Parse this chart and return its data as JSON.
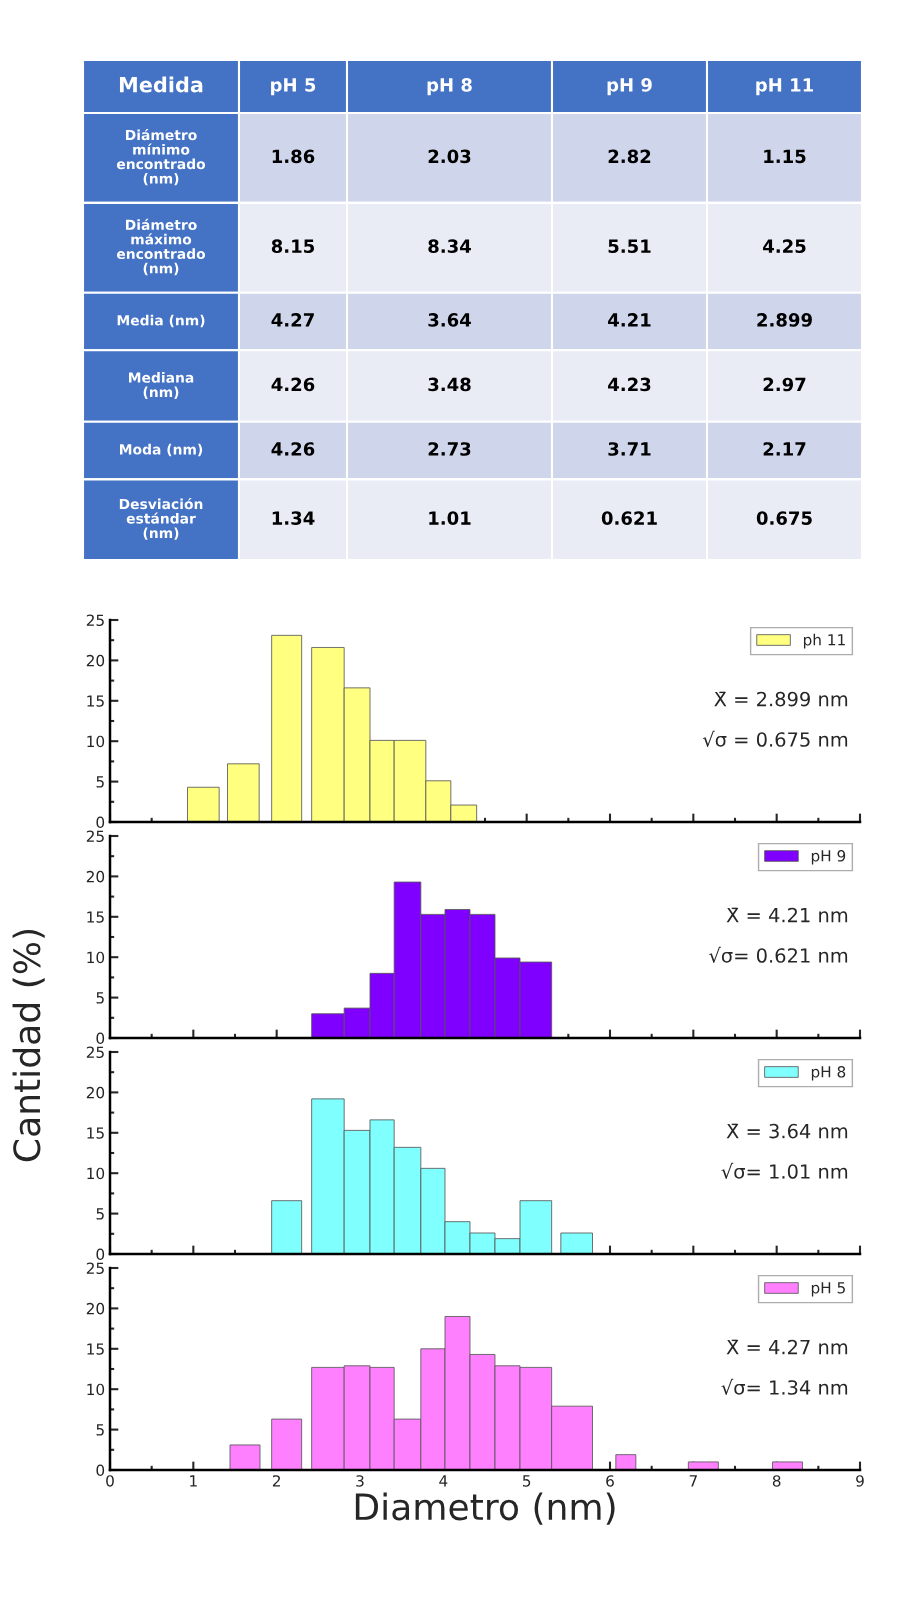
{
  "chart_data": [
    {
      "type": "histogram",
      "ylabel": "Cantidad (%)",
      "legend": "top right",
      "tick_labels": "y",
      "bins": [
        0.93,
        1.31,
        1.41,
        1.79,
        1.94,
        2.3,
        2.42,
        2.81,
        3.12,
        3.41,
        3.79,
        4.09,
        4.4
      ],
      "series": [
        {
          "name": "ph 11",
          "color": "#ffff80",
          "values": [
            4.3,
            0,
            7.2,
            0,
            23.1,
            0,
            21.6,
            16.6,
            10.1,
            10.1,
            5.1,
            2.1
          ]
        }
      ],
      "annotations": [
        "X̄ = 2.899 nm",
        "√σ = 0.675 nm"
      ],
      "ylim": [
        0,
        25
      ],
      "yticks": [
        0,
        {
          "value": 2.5,
          "label": null
        },
        5,
        {
          "value": 7.5,
          "label": null
        },
        10,
        {
          "value": 12.5,
          "label": null
        },
        15,
        {
          "value": 17.5,
          "label": null
        },
        20,
        {
          "value": 22.5,
          "label": null
        },
        25
      ],
      "xlim": [
        0,
        9
      ],
      "xticks": [
        0,
        {
          "value": 0.5,
          "label": null
        },
        1,
        {
          "value": 1.5,
          "label": null
        },
        2,
        {
          "value": 2.5,
          "label": null
        },
        3,
        {
          "value": 3.5,
          "label": null
        },
        4,
        {
          "value": 4.5,
          "label": null
        },
        5,
        {
          "value": 5.5,
          "label": null
        },
        6,
        {
          "value": 6.5,
          "label": null
        },
        7,
        {
          "value": 7.5,
          "label": null
        },
        8,
        {
          "value": 8.5,
          "label": null
        },
        9
      ]
    },
    {
      "type": "histogram",
      "legend": "top right",
      "tick_labels": "y",
      "bins": [
        2.42,
        2.81,
        3.12,
        3.41,
        3.73,
        4.02,
        4.32,
        4.62,
        4.92,
        5.3
      ],
      "series": [
        {
          "name": "pH 9",
          "color": "#8000ff",
          "values": [
            3.0,
            3.7,
            8.0,
            19.3,
            15.3,
            15.9,
            15.3,
            9.9,
            9.4
          ]
        }
      ],
      "annotations": [
        "X̄ = 4.21 nm",
        "√σ= 0.621 nm"
      ],
      "ylim": [
        0,
        25
      ],
      "yticks": [
        0,
        {
          "value": 2.5,
          "label": null
        },
        5,
        {
          "value": 7.5,
          "label": null
        },
        10,
        {
          "value": 12.5,
          "label": null
        },
        15,
        {
          "value": 17.5,
          "label": null
        },
        20,
        {
          "value": 22.5,
          "label": null
        },
        25
      ],
      "xlim": [
        0,
        9
      ],
      "xticks": [
        0,
        {
          "value": 0.5,
          "label": null
        },
        1,
        {
          "value": 1.5,
          "label": null
        },
        2,
        {
          "value": 2.5,
          "label": null
        },
        3,
        {
          "value": 3.5,
          "label": null
        },
        4,
        {
          "value": 4.5,
          "label": null
        },
        5,
        {
          "value": 5.5,
          "label": null
        },
        6,
        {
          "value": 6.5,
          "label": null
        },
        7,
        {
          "value": 7.5,
          "label": null
        },
        8,
        {
          "value": 8.5,
          "label": null
        },
        9
      ]
    },
    {
      "type": "histogram",
      "legend": "top right",
      "tick_labels": "y",
      "bins": [
        1.94,
        2.3,
        2.42,
        2.81,
        3.12,
        3.41,
        3.73,
        4.02,
        4.32,
        4.62,
        4.92,
        5.3,
        5.41,
        5.79
      ],
      "series": [
        {
          "name": "pH 8",
          "color": "#80ffff",
          "values": [
            6.6,
            0,
            19.2,
            15.3,
            16.6,
            13.2,
            10.6,
            4.0,
            2.6,
            1.9,
            6.6,
            0,
            2.6
          ]
        }
      ],
      "annotations": [
        "X̄ = 3.64 nm",
        "√σ= 1.01 nm"
      ],
      "ylim": [
        0,
        25
      ],
      "yticks": [
        0,
        {
          "value": 2.5,
          "label": null
        },
        5,
        {
          "value": 7.5,
          "label": null
        },
        10,
        {
          "value": 12.5,
          "label": null
        },
        15,
        {
          "value": 17.5,
          "label": null
        },
        20,
        {
          "value": 22.5,
          "label": null
        },
        25
      ],
      "xlim": [
        0,
        9
      ],
      "xticks": [
        0,
        {
          "value": 0.5,
          "label": null
        },
        1,
        {
          "value": 1.5,
          "label": null
        },
        2,
        {
          "value": 2.5,
          "label": null
        },
        3,
        {
          "value": 3.5,
          "label": null
        },
        4,
        {
          "value": 4.5,
          "label": null
        },
        5,
        {
          "value": 5.5,
          "label": null
        },
        6,
        {
          "value": 6.5,
          "label": null
        },
        7,
        {
          "value": 7.5,
          "label": null
        },
        8,
        {
          "value": 8.5,
          "label": null
        },
        9
      ]
    },
    {
      "type": "histogram",
      "xlabel": "Diametro (nm)",
      "legend": "top right",
      "bins": [
        1.44,
        1.8,
        1.94,
        2.3,
        2.42,
        2.81,
        3.12,
        3.41,
        3.73,
        4.02,
        4.32,
        4.62,
        4.92,
        5.3,
        5.79,
        6.07,
        6.31,
        6.94,
        7.3,
        7.95,
        8.31
      ],
      "series": [
        {
          "name": "pH 5",
          "color": "#ff80ff",
          "values": [
            3.1,
            0,
            6.3,
            0,
            12.7,
            12.9,
            12.7,
            6.3,
            15.0,
            19.0,
            14.3,
            12.9,
            12.7,
            7.9,
            0,
            1.9,
            0,
            1.0,
            0,
            1.0
          ]
        }
      ],
      "annotations": [
        "X̄ = 4.27 nm",
        "√σ= 1.34 nm"
      ],
      "ylim": [
        0,
        25
      ],
      "yticks": [
        0,
        {
          "value": 2.5,
          "label": null
        },
        5,
        {
          "value": 7.5,
          "label": null
        },
        10,
        {
          "value": 12.5,
          "label": null
        },
        15,
        {
          "value": 17.5,
          "label": null
        },
        20,
        {
          "value": 22.5,
          "label": null
        },
        25
      ],
      "xlim": [
        0,
        9
      ],
      "xticks": [
        0,
        {
          "value": 0.5,
          "label": null
        },
        1,
        {
          "value": 1.5,
          "label": null
        },
        2,
        {
          "value": 2.5,
          "label": null
        },
        3,
        {
          "value": 3.5,
          "label": null
        },
        4,
        {
          "value": 4.5,
          "label": null
        },
        5,
        {
          "value": 5.5,
          "label": null
        },
        6,
        {
          "value": 6.5,
          "label": null
        },
        7,
        {
          "value": 7.5,
          "label": null
        },
        8,
        {
          "value": 8.5,
          "label": null
        },
        9
      ]
    },
    {
      "type": "other",
      "title": "Medida",
      "categories": [
        "pH 5",
        "pH 8",
        "pH 9",
        "pH 11"
      ],
      "y_categories": [
        "Diámetro\nmínimo\nencontrado\n(nm)",
        "Diámetro\nmáximo\nencontrado\n(nm)",
        "Media (nm)",
        "Mediana\n(nm)",
        "Moda (nm)",
        "Desviación\nestándar\n(nm)"
      ],
      "cell_labels": [
        [
          "1.86",
          "2.03",
          "2.82",
          "1.15"
        ],
        [
          "8.15",
          "8.34",
          "5.51",
          "4.25"
        ],
        [
          "4.27",
          "3.64",
          "4.21",
          "2.899"
        ],
        [
          "4.26",
          "3.48",
          "4.23",
          "2.97"
        ],
        [
          "4.26",
          "2.73",
          "3.71",
          "2.17"
        ],
        [
          "1.34",
          "1.01",
          "0.621",
          "0.675"
        ]
      ]
    }
  ]
}
